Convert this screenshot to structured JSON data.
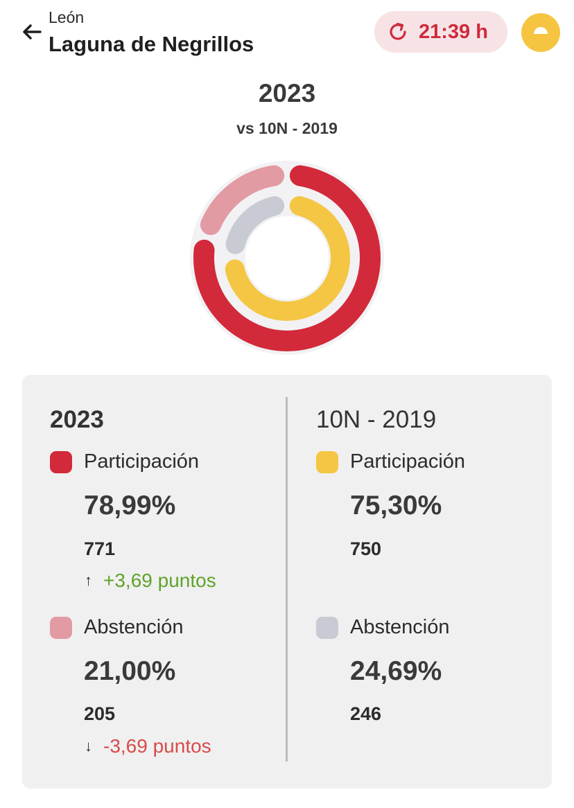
{
  "header": {
    "region": "León",
    "place": "Laguna de Negrillos",
    "refresh_time": "21:39 h"
  },
  "chart_header": {
    "year": "2023",
    "comparison": "vs 10N - 2019"
  },
  "colors": {
    "participation_2023": "#d22a3a",
    "abstention_2023": "#e29aa3",
    "participation_2019": "#f4c644",
    "abstention_2019": "#c8cbd3"
  },
  "chart_data": {
    "type": "pie",
    "series": [
      {
        "values": [
          78.99,
          21.0
        ],
        "categories": [
          "Participación",
          "Abstención"
        ]
      },
      {
        "values": [
          75.3,
          24.69
        ],
        "categories": [
          "Participación",
          "Abstención"
        ]
      }
    ]
  },
  "left": {
    "year": "2023",
    "participation": {
      "label": "Participación",
      "pct": "78,99%",
      "count": "771",
      "arrow": "↑",
      "delta": "+3,69 puntos"
    },
    "abstention": {
      "label": "Abstención",
      "pct": "21,00%",
      "count": "205",
      "arrow": "↓",
      "delta": "-3,69 puntos"
    }
  },
  "right": {
    "year": "10N - 2019",
    "participation": {
      "label": "Participación",
      "pct": "75,30%",
      "count": "750"
    },
    "abstention": {
      "label": "Abstención",
      "pct": "24,69%",
      "count": "246"
    }
  }
}
